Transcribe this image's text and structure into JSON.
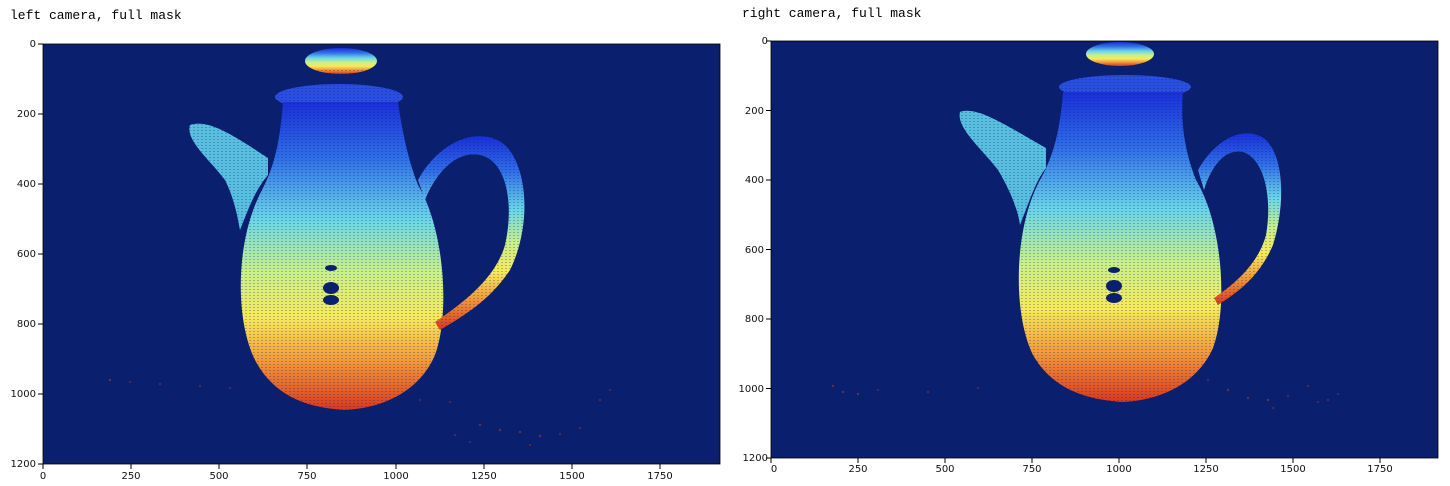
{
  "panels": [
    {
      "title": "left camera, full mask",
      "y_ticks": [
        "0",
        "200",
        "400",
        "600",
        "800",
        "1000",
        "1200"
      ],
      "x_ticks": [
        "0",
        "250",
        "500",
        "750",
        "1000",
        "1250",
        "1500",
        "1750"
      ],
      "x_range": [
        0,
        1920
      ],
      "y_range": [
        0,
        1200
      ],
      "image_description_colormap": "jet",
      "background_color": "#0a1f6e"
    },
    {
      "title": "right camera, full mask",
      "y_ticks": [
        "0",
        "200",
        "400",
        "600",
        "800",
        "1000",
        "1200"
      ],
      "x_ticks": [
        "0",
        "250",
        "500",
        "750",
        "1000",
        "1250",
        "1500",
        "1750"
      ],
      "x_range": [
        0,
        1920
      ],
      "y_range": [
        0,
        1200
      ],
      "image_description_colormap": "jet",
      "background_color": "#0a1f6e"
    }
  ]
}
